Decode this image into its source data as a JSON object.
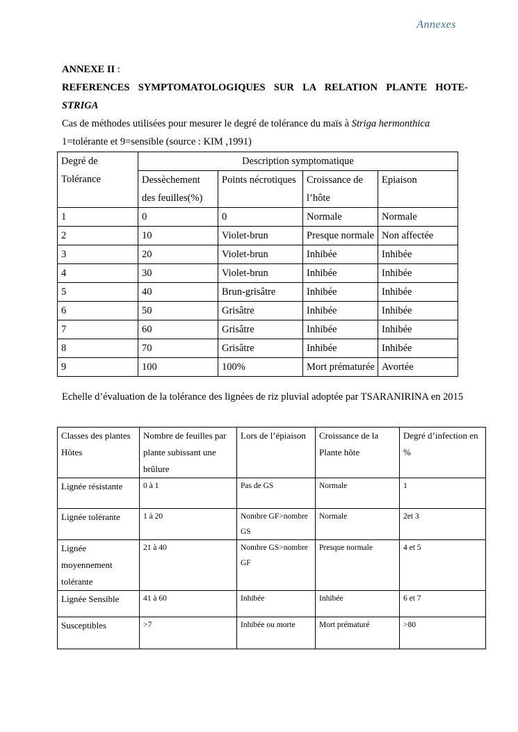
{
  "header": {
    "running_title": "Annexes"
  },
  "annex": {
    "label": "ANNEXE II",
    "colon": " :",
    "title": "REFERENCES SYMPTOMATOLOGIQUES SUR LA RELATION PLANTE HOTE-",
    "title_italic": "STRIGA"
  },
  "table1": {
    "caption": "Cas de méthodes utilisées pour mesurer le degré de tolérance du maïs à ",
    "caption_italic": "Striga hermonthica",
    "caption_line2": "1=tolérante et 9=sensible (source : KIM ,1991)",
    "first_header": "Degré de Tolérance",
    "group_header": "Description symptomatique",
    "columns": [
      "Dessèchement des feuilles(%)",
      "Points nécrotiques",
      "Croissance de l’hôte",
      "Epiaison"
    ],
    "rows": [
      [
        "1",
        "0",
        "0",
        "Normale",
        "Normale"
      ],
      [
        "2",
        "10",
        "Violet-brun",
        "Presque normale",
        "Non affectée"
      ],
      [
        "3",
        "20",
        "Violet-brun",
        "Inhibée",
        "Inhibée"
      ],
      [
        "4",
        "30",
        "Violet-brun",
        "Inhibée",
        "Inhibée"
      ],
      [
        "5",
        "40",
        "Brun-grisâtre",
        "Inhibée",
        "Inhibée"
      ],
      [
        "6",
        "50",
        "Grisâtre",
        "Inhibée",
        "Inhibée"
      ],
      [
        "7",
        "60",
        "Grisâtre",
        "Inhibée",
        "Inhibée"
      ],
      [
        "8",
        "70",
        "Grisâtre",
        "Inhibée",
        "Inhibée"
      ],
      [
        "9",
        "100",
        "100%",
        "Mort prématurée",
        "Avortée"
      ]
    ]
  },
  "table2": {
    "caption": "Echelle d’évaluation de la tolérance des lignées de riz pluvial adoptée par TSARANIRINA en 2015",
    "columns": [
      "Classes des plantes Hôtes",
      "Nombre de feuilles par plante subissant une brûlure",
      "Lors de l’épiaison",
      "Croissance de la Plante hôte",
      "Degré d’infection en %"
    ],
    "rows": [
      [
        "Lignée résistante",
        "0 à 1",
        "Pas de GS",
        "Normale",
        "1"
      ],
      [
        "Lignée tolérante",
        "1 à 20",
        "Nombre GF>nombre GS",
        "Normale",
        "2et 3"
      ],
      [
        "Lignée moyennement tolérante",
        "21 à 40",
        "Nombre GS>nombre GF",
        "Presque normale",
        "4 et 5"
      ],
      [
        "Lignée Sensible",
        "41 à 60",
        "Inhibée",
        "Inhibée",
        "6 et 7"
      ],
      [
        "Susceptibles",
        ">7",
        "Inhibée ou morte",
        "Mort prématuré",
        ">80"
      ]
    ]
  }
}
